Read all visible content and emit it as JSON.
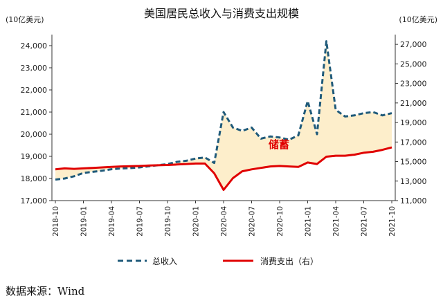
{
  "chart_data": {
    "type": "line",
    "title": "美国居民总收入与消费支出规模",
    "left_axis_unit": "(10亿美元)",
    "right_axis_unit": "(10亿美元)",
    "left_ylim": [
      17000,
      24500
    ],
    "right_ylim": [
      11000,
      28000
    ],
    "left_ticks": [
      "17,000",
      "18,000",
      "19,000",
      "20,000",
      "21,000",
      "22,000",
      "23,000",
      "24,000"
    ],
    "left_tick_values": [
      17000,
      18000,
      19000,
      20000,
      21000,
      22000,
      23000,
      24000
    ],
    "right_ticks": [
      "11,000",
      "13,000",
      "15,000",
      "17,000",
      "19,000",
      "21,000",
      "23,000",
      "25,000",
      "27,000"
    ],
    "right_tick_values": [
      11000,
      13000,
      15000,
      17000,
      19000,
      21000,
      23000,
      25000,
      27000
    ],
    "x_tick_labels": [
      "2018-10",
      "2019-01",
      "2019-04",
      "2019-07",
      "2019-10",
      "2020-01",
      "2020-04",
      "2020-07",
      "2020-10",
      "2021-01",
      "2021-04",
      "2021-07",
      "2021-10"
    ],
    "months": [
      "2018-10",
      "2018-11",
      "2018-12",
      "2019-01",
      "2019-02",
      "2019-03",
      "2019-04",
      "2019-05",
      "2019-06",
      "2019-07",
      "2019-08",
      "2019-09",
      "2019-10",
      "2019-11",
      "2019-12",
      "2020-01",
      "2020-02",
      "2020-03",
      "2020-04",
      "2020-05",
      "2020-06",
      "2020-07",
      "2020-08",
      "2020-09",
      "2020-10",
      "2020-11",
      "2020-12",
      "2021-01",
      "2021-02",
      "2021-03",
      "2021-04",
      "2021-05",
      "2021-06",
      "2021-07",
      "2021-08",
      "2021-09",
      "2021-10"
    ],
    "series": [
      {
        "name": "总收入",
        "axis": "left",
        "color": "#1f5a7a",
        "style": "dashed",
        "values": [
          17950,
          18000,
          18100,
          18250,
          18300,
          18350,
          18420,
          18450,
          18470,
          18500,
          18550,
          18600,
          18650,
          18750,
          18800,
          18900,
          18950,
          18700,
          21000,
          20300,
          20150,
          20300,
          19800,
          19900,
          19850,
          19750,
          19950,
          21500,
          20000,
          24200,
          21100,
          20800,
          20850,
          20950,
          21000,
          20850,
          20950
        ]
      },
      {
        "name": "消费支出（右）",
        "axis": "right",
        "color": "#e00000",
        "style": "solid",
        "values": [
          14200,
          14300,
          14250,
          14300,
          14350,
          14400,
          14450,
          14500,
          14520,
          14550,
          14600,
          14620,
          14650,
          14700,
          14750,
          14800,
          14800,
          13800,
          12100,
          13300,
          14000,
          14200,
          14350,
          14500,
          14550,
          14500,
          14450,
          14900,
          14750,
          15500,
          15600,
          15600,
          15700,
          15900,
          16000,
          16200,
          16450
        ]
      }
    ],
    "annotation": "储蓄",
    "legend_position": "bottom",
    "grid": false
  },
  "source_text": "数据来源：Wind"
}
